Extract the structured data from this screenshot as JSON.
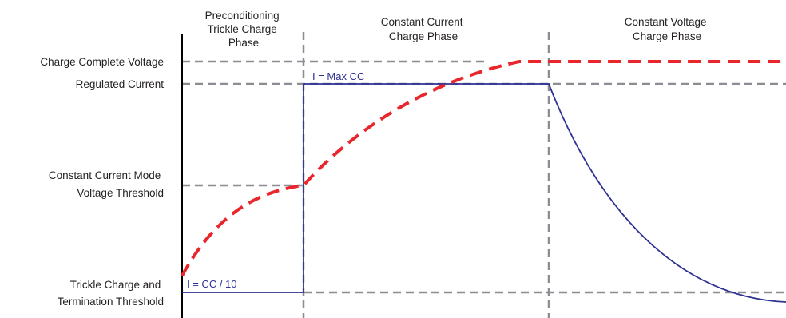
{
  "phases": [
    {
      "lines": [
        "Preconditioning",
        "Trickle Charge",
        "Phase"
      ]
    },
    {
      "lines": [
        "Constant Current",
        "Charge Phase"
      ]
    },
    {
      "lines": [
        "Constant  Voltage",
        "Charge Phase"
      ]
    }
  ],
  "levels": [
    {
      "lines": [
        "Charge Complete Voltage"
      ]
    },
    {
      "lines": [
        "Regulated Current"
      ]
    },
    {
      "lines": [
        "Constant Current Mode",
        "Voltage Threshold"
      ]
    },
    {
      "lines": [
        "Trickle Charge and",
        "Termination Threshold"
      ]
    }
  ],
  "annotations": {
    "max_cc": "I = Max CC",
    "cc_10": "I = CC / 10"
  },
  "colors": {
    "voltage_curve": "#e8262b",
    "current_curve": "#2e3192",
    "guide_lines": "#8a8d91",
    "axis": "#000000",
    "text": "#231f20"
  }
}
